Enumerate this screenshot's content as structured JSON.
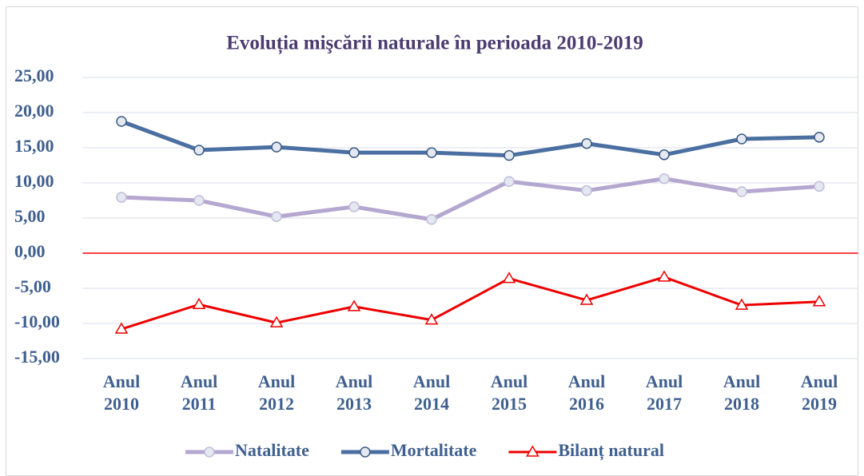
{
  "chart_data": {
    "type": "line",
    "title": "Evoluția mişcării naturale în perioada 2010-2019",
    "categories": [
      "Anul 2010",
      "Anul 2011",
      "Anul 2012",
      "Anul 2013",
      "Anul 2014",
      "Anul 2015",
      "Anul 2016",
      "Anul 2017",
      "Anul 2018",
      "Anul 2019"
    ],
    "series": [
      {
        "name": "Natalitate",
        "color": "#b4a7d0",
        "marker": "circle",
        "values": [
          7.95,
          7.5,
          5.2,
          6.6,
          4.8,
          10.2,
          8.9,
          10.6,
          8.75,
          9.5
        ]
      },
      {
        "name": "Mortalitate",
        "color": "#4a6fa0",
        "marker": "circle",
        "values": [
          18.75,
          14.66,
          15.1,
          14.3,
          14.3,
          13.9,
          15.6,
          14.0,
          16.25,
          16.5
        ]
      },
      {
        "name": "Bilanț natural",
        "color": "#ee0000",
        "marker": "triangle",
        "values": [
          -10.8,
          -7.3,
          -9.9,
          -7.6,
          -9.5,
          -3.6,
          -6.7,
          -3.4,
          -7.4,
          -6.9
        ]
      }
    ],
    "ylim": [
      -15,
      25
    ],
    "yticks": [
      {
        "value": -15,
        "label": "-15,00"
      },
      {
        "value": -10,
        "label": "-10,00"
      },
      {
        "value": -5,
        "label": "-5,00"
      },
      {
        "value": 0,
        "label": "0,00"
      },
      {
        "value": 5,
        "label": "5,00"
      },
      {
        "value": 10,
        "label": "10,00"
      },
      {
        "value": 15,
        "label": "15,00"
      },
      {
        "value": 20,
        "label": "20,00"
      },
      {
        "value": 25,
        "label": "25,00"
      }
    ],
    "grid": true,
    "zero_line_color": "#ff0000",
    "legend": "bottom"
  }
}
